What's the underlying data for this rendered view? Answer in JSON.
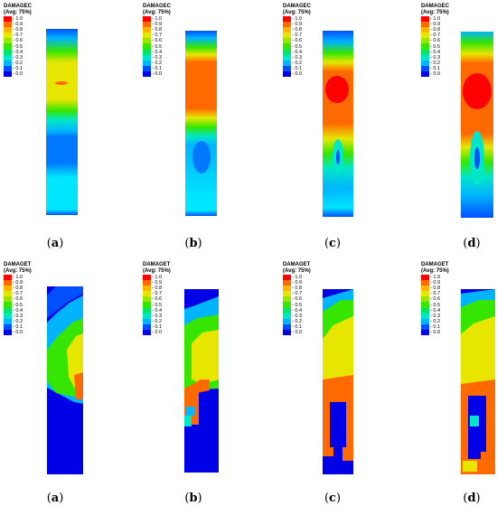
{
  "rows": [
    {
      "legend_title": "DAMAGEC",
      "legend_subtitle": "(Avg: 75%)",
      "panels": [
        {
          "id": "a",
          "caption": "a"
        },
        {
          "id": "b",
          "caption": "b"
        },
        {
          "id": "c",
          "caption": "c"
        },
        {
          "id": "d",
          "caption": "d"
        }
      ]
    },
    {
      "legend_title": "DAMAGET",
      "legend_subtitle": "(Avg: 75%)",
      "panels": [
        {
          "id": "a",
          "caption": "a"
        },
        {
          "id": "b",
          "caption": "b"
        },
        {
          "id": "c",
          "caption": "c"
        },
        {
          "id": "d",
          "caption": "d"
        }
      ]
    }
  ],
  "legend_levels": [
    {
      "label": "1.0",
      "color": "#ff0000"
    },
    {
      "label": "0.9",
      "color": "#ff6a00"
    },
    {
      "label": "0.8",
      "color": "#ffb400"
    },
    {
      "label": "0.7",
      "color": "#e6e600"
    },
    {
      "label": "0.6",
      "color": "#9be600"
    },
    {
      "label": "0.5",
      "color": "#36e600"
    },
    {
      "label": "0.4",
      "color": "#00e66b"
    },
    {
      "label": "0.3",
      "color": "#00e6c8"
    },
    {
      "label": "0.2",
      "color": "#00b4ff"
    },
    {
      "label": "0.1",
      "color": "#0050ff"
    },
    {
      "label": "0.0",
      "color": "#0000e6"
    }
  ]
}
